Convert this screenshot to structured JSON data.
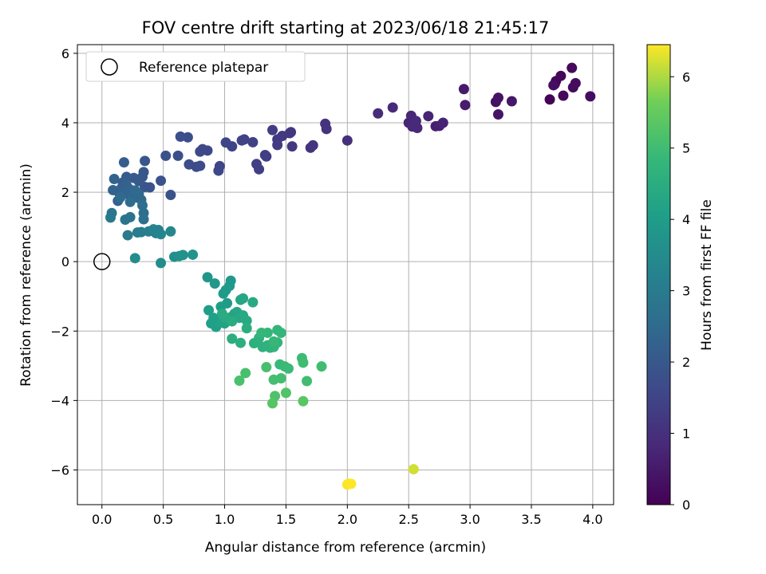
{
  "chart_data": {
    "type": "scatter",
    "title": "FOV centre drift starting at 2023/06/18 21:45:17",
    "xlabel": "Angular distance from reference (arcmin)",
    "ylabel": "Rotation from reference (arcmin)",
    "xlim": [
      -0.2,
      4.17
    ],
    "ylim": [
      -7.0,
      6.25
    ],
    "xticks": [
      "0.0",
      "0.5",
      "1.0",
      "1.5",
      "2.0",
      "2.5",
      "3.0",
      "3.5",
      "4.0"
    ],
    "xtick_values": [
      0,
      0.5,
      1.0,
      1.5,
      2.0,
      2.5,
      3.0,
      3.5,
      4.0
    ],
    "yticks": [
      "6",
      "4",
      "2",
      "0",
      "−2",
      "−4",
      "−6"
    ],
    "ytick_values": [
      6,
      4,
      2,
      0,
      -2,
      -4,
      -6
    ],
    "grid": true,
    "legend": {
      "placement": "top-left",
      "label": "Reference platepar"
    },
    "reference_point": {
      "x": 0,
      "y": 0
    },
    "colorbar": {
      "label": "Hours from first FF file",
      "range": [
        0,
        6.45
      ],
      "ticks": [
        "0",
        "1",
        "2",
        "3",
        "4",
        "5",
        "6"
      ],
      "tick_values": [
        0,
        1,
        2,
        3,
        4,
        5,
        6
      ],
      "colormap": "viridis"
    },
    "points": [
      [
        3.65,
        4.67,
        0.05
      ],
      [
        3.69,
        5.11,
        0.08
      ],
      [
        3.7,
        5.2,
        0.1
      ],
      [
        3.74,
        5.35,
        0.12
      ],
      [
        3.76,
        4.78,
        0.15
      ],
      [
        3.83,
        5.58,
        0.18
      ],
      [
        3.84,
        5.02,
        0.2
      ],
      [
        3.86,
        5.14,
        0.22
      ],
      [
        3.98,
        4.76,
        0.25
      ],
      [
        3.68,
        5.08,
        0.28
      ],
      [
        3.21,
        4.6,
        0.3
      ],
      [
        3.23,
        4.72,
        0.35
      ],
      [
        3.23,
        4.24,
        0.4
      ],
      [
        3.34,
        4.62,
        0.45
      ],
      [
        2.95,
        4.97,
        0.5
      ],
      [
        2.96,
        4.51,
        0.55
      ],
      [
        2.72,
        3.9,
        0.6
      ],
      [
        2.75,
        3.91,
        0.65
      ],
      [
        2.78,
        4.0,
        0.7
      ],
      [
        2.66,
        4.19,
        0.72
      ],
      [
        2.5,
        4.0,
        0.75
      ],
      [
        2.52,
        4.2,
        0.78
      ],
      [
        2.53,
        3.89,
        0.8
      ],
      [
        2.57,
        3.85,
        0.83
      ],
      [
        2.56,
        4.05,
        0.85
      ],
      [
        2.37,
        4.44,
        0.88
      ],
      [
        2.25,
        4.27,
        0.9
      ],
      [
        2.0,
        3.49,
        1.0
      ],
      [
        1.82,
        3.97,
        1.05
      ],
      [
        1.83,
        3.82,
        1.08
      ],
      [
        1.7,
        3.28,
        1.1
      ],
      [
        1.72,
        3.35,
        1.12
      ],
      [
        1.55,
        3.32,
        1.15
      ],
      [
        1.54,
        3.73,
        1.18
      ],
      [
        1.53,
        3.7,
        1.2
      ],
      [
        1.47,
        3.62,
        1.22
      ],
      [
        1.43,
        3.52,
        1.25
      ],
      [
        1.43,
        3.36,
        1.28
      ],
      [
        1.39,
        3.79,
        1.3
      ],
      [
        1.34,
        3.03,
        1.33
      ],
      [
        1.33,
        3.07,
        1.35
      ],
      [
        1.28,
        2.66,
        1.38
      ],
      [
        1.26,
        2.81,
        1.4
      ],
      [
        1.23,
        3.44,
        1.42
      ],
      [
        1.16,
        3.52,
        1.45
      ],
      [
        1.14,
        3.49,
        1.48
      ],
      [
        1.06,
        3.32,
        1.5
      ],
      [
        1.01,
        3.43,
        1.52
      ],
      [
        0.96,
        2.75,
        1.55
      ],
      [
        0.95,
        2.62,
        1.58
      ],
      [
        0.86,
        3.2,
        1.6
      ],
      [
        0.82,
        3.24,
        1.62
      ],
      [
        0.8,
        3.17,
        1.65
      ],
      [
        0.77,
        2.73,
        1.68
      ],
      [
        0.8,
        2.76,
        1.7
      ],
      [
        0.71,
        2.8,
        1.72
      ],
      [
        0.7,
        3.58,
        1.75
      ],
      [
        0.64,
        3.6,
        1.78
      ],
      [
        0.62,
        3.05,
        1.8
      ],
      [
        0.52,
        3.05,
        1.82
      ],
      [
        0.56,
        1.92,
        1.85
      ],
      [
        0.48,
        2.33,
        1.88
      ],
      [
        0.39,
        2.14,
        1.9
      ],
      [
        0.35,
        2.15,
        1.92
      ],
      [
        0.35,
        2.9,
        1.95
      ],
      [
        0.34,
        2.58,
        1.98
      ],
      [
        0.33,
        2.44,
        2.0
      ],
      [
        0.3,
        2.32,
        2.02
      ],
      [
        0.26,
        2.41,
        2.05
      ],
      [
        0.24,
        2.0,
        2.08
      ],
      [
        0.2,
        2.44,
        2.1
      ],
      [
        0.18,
        2.86,
        2.12
      ],
      [
        0.17,
        2.28,
        2.15
      ],
      [
        0.16,
        2.12,
        2.18
      ],
      [
        0.14,
        1.98,
        2.2
      ],
      [
        0.13,
        1.75,
        2.22
      ],
      [
        0.1,
        2.38,
        2.25
      ],
      [
        0.09,
        2.06,
        2.28
      ],
      [
        0.2,
        2.2,
        2.3
      ],
      [
        0.22,
        2.1,
        2.32
      ],
      [
        0.18,
        1.95,
        2.35
      ],
      [
        0.25,
        1.9,
        2.38
      ],
      [
        0.28,
        1.85,
        2.4
      ],
      [
        0.3,
        1.95,
        2.42
      ],
      [
        0.32,
        1.78,
        2.45
      ],
      [
        0.27,
        2.05,
        2.48
      ],
      [
        0.15,
        1.85,
        2.5
      ],
      [
        0.23,
        1.72,
        2.55
      ],
      [
        0.33,
        1.62,
        2.6
      ],
      [
        0.34,
        1.4,
        2.65
      ],
      [
        0.34,
        1.22,
        2.7
      ],
      [
        0.23,
        1.28,
        2.75
      ],
      [
        0.19,
        1.21,
        2.8
      ],
      [
        0.08,
        1.4,
        2.85
      ],
      [
        0.07,
        1.27,
        2.9
      ],
      [
        0.21,
        0.76,
        2.95
      ],
      [
        0.29,
        0.84,
        3.0
      ],
      [
        0.32,
        0.85,
        3.05
      ],
      [
        0.38,
        0.87,
        3.1
      ],
      [
        0.44,
        0.82,
        3.15
      ],
      [
        0.46,
        0.91,
        3.2
      ],
      [
        0.42,
        0.93,
        3.25
      ],
      [
        0.48,
        0.79,
        3.3
      ],
      [
        0.56,
        0.87,
        3.35
      ],
      [
        0.27,
        0.1,
        3.5
      ],
      [
        0.48,
        -0.04,
        3.55
      ],
      [
        0.59,
        0.14,
        3.6
      ],
      [
        0.63,
        0.16,
        3.65
      ],
      [
        0.66,
        0.19,
        3.7
      ],
      [
        0.74,
        0.2,
        3.75
      ],
      [
        0.86,
        -0.45,
        3.8
      ],
      [
        0.92,
        -0.63,
        3.85
      ],
      [
        1.05,
        -0.55,
        3.88
      ],
      [
        1.04,
        -0.7,
        3.9
      ],
      [
        1.01,
        -0.82,
        3.92
      ],
      [
        0.99,
        -0.92,
        3.95
      ],
      [
        1.02,
        -1.2,
        3.98
      ],
      [
        0.97,
        -1.3,
        4.0
      ],
      [
        0.87,
        -1.4,
        4.02
      ],
      [
        0.91,
        -1.62,
        4.05
      ],
      [
        0.89,
        -1.78,
        4.08
      ],
      [
        0.93,
        -1.88,
        4.1
      ],
      [
        0.96,
        -1.76,
        4.12
      ],
      [
        1.0,
        -1.78,
        4.15
      ],
      [
        1.03,
        -1.66,
        4.18
      ],
      [
        1.05,
        -1.6,
        4.2
      ],
      [
        1.08,
        -1.5,
        4.22
      ],
      [
        1.1,
        -1.45,
        4.25
      ],
      [
        1.13,
        -1.1,
        4.28
      ],
      [
        1.15,
        -1.06,
        4.3
      ],
      [
        1.12,
        -1.62,
        4.32
      ],
      [
        1.15,
        -1.55,
        4.35
      ],
      [
        1.18,
        -1.7,
        4.38
      ],
      [
        1.23,
        -1.17,
        4.4
      ],
      [
        1.0,
        -1.6,
        4.42
      ],
      [
        0.98,
        -1.5,
        4.45
      ],
      [
        1.06,
        -1.72,
        4.48
      ],
      [
        1.18,
        -1.92,
        4.5
      ],
      [
        1.06,
        -2.22,
        4.52
      ],
      [
        1.13,
        -2.34,
        4.55
      ],
      [
        1.24,
        -2.35,
        4.58
      ],
      [
        1.28,
        -2.2,
        4.6
      ],
      [
        1.31,
        -2.46,
        4.62
      ],
      [
        1.35,
        -2.41,
        4.65
      ],
      [
        1.37,
        -2.48,
        4.68
      ],
      [
        1.4,
        -2.46,
        4.7
      ],
      [
        1.43,
        -2.33,
        4.72
      ],
      [
        1.35,
        -2.05,
        4.75
      ],
      [
        1.43,
        -1.97,
        4.78
      ],
      [
        1.46,
        -2.05,
        4.8
      ],
      [
        1.3,
        -2.05,
        4.82
      ],
      [
        1.4,
        -2.3,
        4.85
      ],
      [
        1.45,
        -2.96,
        4.88
      ],
      [
        1.49,
        -3.02,
        4.9
      ],
      [
        1.52,
        -3.08,
        4.92
      ],
      [
        1.63,
        -2.78,
        4.95
      ],
      [
        1.64,
        -2.91,
        4.98
      ],
      [
        1.79,
        -3.02,
        5.0
      ],
      [
        1.67,
        -3.44,
        5.02
      ],
      [
        1.46,
        -3.36,
        5.05
      ],
      [
        1.4,
        -3.4,
        5.08
      ],
      [
        1.34,
        -3.04,
        5.1
      ],
      [
        1.17,
        -3.21,
        5.12
      ],
      [
        1.12,
        -3.43,
        5.15
      ],
      [
        1.41,
        -3.87,
        5.2
      ],
      [
        1.5,
        -3.78,
        5.25
      ],
      [
        1.39,
        -4.08,
        5.3
      ],
      [
        1.64,
        -4.02,
        5.35
      ],
      [
        2.54,
        -5.98,
        6.2
      ],
      [
        2.01,
        -6.4,
        6.4
      ],
      [
        2.0,
        -6.42,
        6.42
      ],
      [
        2.03,
        -6.4,
        6.45
      ]
    ]
  }
}
